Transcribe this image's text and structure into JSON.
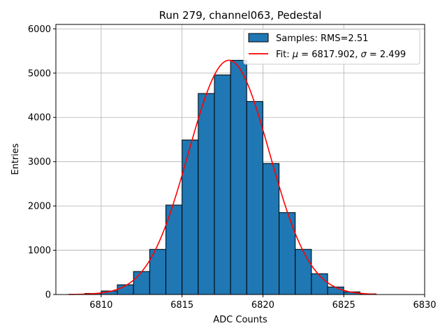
{
  "chart_data": {
    "type": "bar",
    "title": "Run 279, channel063, Pedestal",
    "xlabel": "ADC Counts",
    "ylabel": "Entries",
    "xlim": [
      6807.2,
      6830
    ],
    "ylim": [
      0,
      6100
    ],
    "xticks": [
      6810,
      6815,
      6820,
      6825,
      6830
    ],
    "yticks": [
      0,
      1000,
      2000,
      3000,
      4000,
      5000,
      6000
    ],
    "grid": true,
    "legend_position": "top-right",
    "histogram": {
      "name": "Samples: RMS=2.51",
      "bin_width": 1,
      "bin_starts": [
        6808,
        6809,
        6810,
        6811,
        6812,
        6813,
        6814,
        6815,
        6816,
        6817,
        6818,
        6819,
        6820,
        6821,
        6822,
        6823,
        6824,
        6825,
        6826
      ],
      "values": [
        5,
        25,
        80,
        220,
        520,
        1020,
        2020,
        3490,
        4540,
        4960,
        5290,
        4360,
        2960,
        1850,
        1020,
        470,
        170,
        60,
        15
      ],
      "color": "#1f77b4"
    },
    "fit": {
      "name": "Fit: μ = 6817.902, σ = 2.499",
      "legend_parts": [
        "Fit: ",
        "μ",
        " = 6817.902, ",
        "σ",
        " = 2.499"
      ],
      "mu": 6817.902,
      "sigma": 2.499,
      "peak": 5290,
      "x_range": [
        6808,
        6827
      ],
      "color": "#ff0000"
    }
  }
}
